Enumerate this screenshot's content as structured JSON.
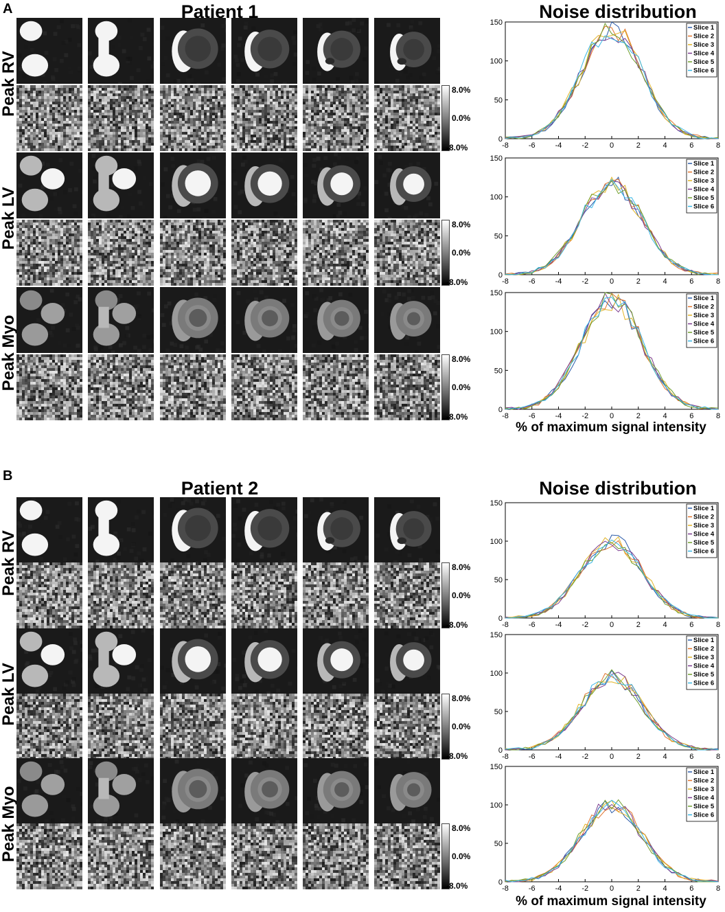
{
  "panels": [
    {
      "letter": "A",
      "patient_title": "Patient 1",
      "noise_title": "Noise distribution",
      "rows": [
        {
          "label": "Peak RV",
          "phase": 0
        },
        {
          "label": "Peak LV",
          "phase": 1
        },
        {
          "label": "Peak Myo",
          "phase": 2
        }
      ]
    },
    {
      "letter": "B",
      "patient_title": "Patient 2",
      "noise_title": "Noise distribution",
      "rows": [
        {
          "label": "Peak RV",
          "phase": 0
        },
        {
          "label": "Peak LV",
          "phase": 1
        },
        {
          "label": "Peak Myo",
          "phase": 2
        }
      ]
    }
  ],
  "colorbar": {
    "top": "8.0%",
    "mid": "0.0%",
    "bottom": "-8.0%"
  },
  "xlabel": "% of maximum signal intensity",
  "series_colors": [
    "#2b5aa8",
    "#e0722a",
    "#e1b325",
    "#7b3b8e",
    "#6f9e2e",
    "#37b6e5"
  ],
  "chart_data": [
    {
      "type": "line",
      "panel": "A",
      "row": "Peak RV",
      "peak": 140,
      "series": [
        {
          "name": "Slice 1"
        },
        {
          "name": "Slice 2"
        },
        {
          "name": "Slice 3"
        },
        {
          "name": "Slice 4"
        },
        {
          "name": "Slice 5"
        },
        {
          "name": "Slice 6"
        }
      ],
      "xlim": [
        -8,
        8
      ],
      "ylim": [
        0,
        150
      ],
      "xticks": [
        -8,
        -6,
        -4,
        -2,
        0,
        2,
        4,
        6,
        8
      ],
      "yticks": [
        0,
        50,
        100,
        150
      ],
      "legend": "top-right"
    },
    {
      "type": "line",
      "panel": "A",
      "row": "Peak LV",
      "peak": 118,
      "series": [
        {
          "name": "Slice 1"
        },
        {
          "name": "Slice 2"
        },
        {
          "name": "Slice 3"
        },
        {
          "name": "Slice 4"
        },
        {
          "name": "Slice 5"
        },
        {
          "name": "Slice 6"
        }
      ],
      "xlim": [
        -8,
        8
      ],
      "ylim": [
        0,
        150
      ],
      "xticks": [
        -8,
        -6,
        -4,
        -2,
        0,
        2,
        4,
        6,
        8
      ],
      "yticks": [
        0,
        50,
        100,
        150
      ],
      "legend": "top-right"
    },
    {
      "type": "line",
      "panel": "A",
      "row": "Peak Myo",
      "peak": 140,
      "series": [
        {
          "name": "Slice 1"
        },
        {
          "name": "Slice 2"
        },
        {
          "name": "Slice 3"
        },
        {
          "name": "Slice 4"
        },
        {
          "name": "Slice 5"
        },
        {
          "name": "Slice 6"
        }
      ],
      "xlim": [
        -8,
        8
      ],
      "ylim": [
        0,
        150
      ],
      "xticks": [
        -8,
        -6,
        -4,
        -2,
        0,
        2,
        4,
        6,
        8
      ],
      "yticks": [
        0,
        50,
        100,
        150
      ],
      "legend": "top-right"
    },
    {
      "type": "line",
      "panel": "B",
      "row": "Peak RV",
      "peak": 100,
      "series": [
        {
          "name": "Slice 1"
        },
        {
          "name": "Slice 2"
        },
        {
          "name": "Slice 3"
        },
        {
          "name": "Slice 4"
        },
        {
          "name": "Slice 5"
        },
        {
          "name": "Slice 6"
        }
      ],
      "xlim": [
        -8,
        8
      ],
      "ylim": [
        0,
        150
      ],
      "xticks": [
        -8,
        -6,
        -4,
        -2,
        0,
        2,
        4,
        6,
        8
      ],
      "yticks": [
        0,
        50,
        100,
        150
      ],
      "legend": "top-right"
    },
    {
      "type": "line",
      "panel": "B",
      "row": "Peak LV",
      "peak": 95,
      "series": [
        {
          "name": "Slice 1"
        },
        {
          "name": "Slice 2"
        },
        {
          "name": "Slice 3"
        },
        {
          "name": "Slice 4"
        },
        {
          "name": "Slice 5"
        },
        {
          "name": "Slice 6"
        }
      ],
      "xlim": [
        -8,
        8
      ],
      "ylim": [
        0,
        150
      ],
      "xticks": [
        -8,
        -6,
        -4,
        -2,
        0,
        2,
        4,
        6,
        8
      ],
      "yticks": [
        0,
        50,
        100,
        150
      ],
      "legend": "top-right"
    },
    {
      "type": "line",
      "panel": "B",
      "row": "Peak Myo",
      "peak": 100,
      "series": [
        {
          "name": "Slice 1"
        },
        {
          "name": "Slice 2"
        },
        {
          "name": "Slice 3"
        },
        {
          "name": "Slice 4"
        },
        {
          "name": "Slice 5"
        },
        {
          "name": "Slice 6"
        }
      ],
      "xlim": [
        -8,
        8
      ],
      "ylim": [
        0,
        150
      ],
      "xticks": [
        -8,
        -6,
        -4,
        -2,
        0,
        2,
        4,
        6,
        8
      ],
      "yticks": [
        0,
        50,
        100,
        150
      ],
      "legend": "top-right"
    }
  ]
}
